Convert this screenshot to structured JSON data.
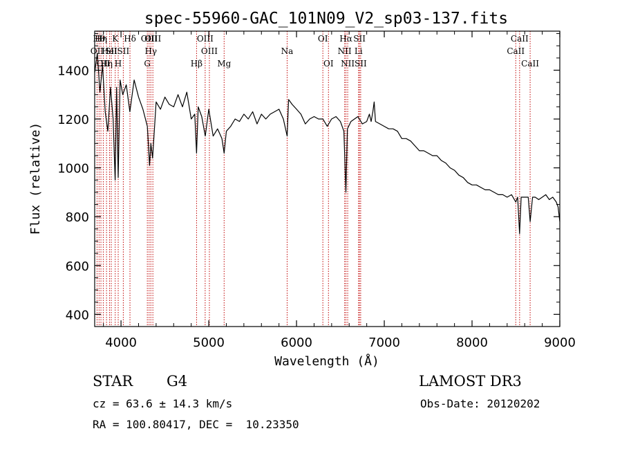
{
  "chart_data": {
    "type": "line",
    "title": "spec-55960-GAC_101N09_V2_sp03-137.fits",
    "xlabel": "Wavelength (Å)",
    "ylabel": "Flux (relative)",
    "xlim": [
      3700,
      9000
    ],
    "ylim": [
      350,
      1560
    ],
    "x_ticks": [
      4000,
      5000,
      6000,
      7000,
      8000,
      9000
    ],
    "y_ticks": [
      400,
      600,
      800,
      1000,
      1200,
      1400
    ],
    "grid": false,
    "legend": "none",
    "line_color": "#000000",
    "marker_color": "#c00000",
    "spectrum": {
      "x": [
        3700,
        3730,
        3760,
        3790,
        3820,
        3850,
        3880,
        3910,
        3933,
        3950,
        3968,
        3990,
        4020,
        4060,
        4101,
        4150,
        4200,
        4250,
        4300,
        4325,
        4340,
        4360,
        4400,
        4450,
        4500,
        4550,
        4600,
        4650,
        4700,
        4750,
        4800,
        4840,
        4861,
        4880,
        4920,
        4960,
        5000,
        5050,
        5100,
        5150,
        5175,
        5200,
        5250,
        5300,
        5350,
        5400,
        5450,
        5500,
        5550,
        5600,
        5650,
        5700,
        5750,
        5800,
        5850,
        5893,
        5910,
        5950,
        6000,
        6050,
        6100,
        6150,
        6200,
        6250,
        6300,
        6350,
        6400,
        6450,
        6500,
        6540,
        6563,
        6580,
        6620,
        6660,
        6700,
        6750,
        6800,
        6830,
        6850,
        6870,
        6885,
        6900,
        6950,
        7000,
        7050,
        7100,
        7150,
        7200,
        7250,
        7300,
        7350,
        7400,
        7450,
        7500,
        7550,
        7600,
        7650,
        7700,
        7750,
        7800,
        7850,
        7900,
        7950,
        8000,
        8050,
        8100,
        8150,
        8200,
        8250,
        8300,
        8350,
        8400,
        8450,
        8498,
        8520,
        8542,
        8560,
        8600,
        8640,
        8662,
        8690,
        8720,
        8760,
        8800,
        8840,
        8880,
        8920,
        8960,
        8980,
        9000
      ],
      "y": [
        1390,
        1470,
        1310,
        1420,
        1230,
        1150,
        1330,
        1200,
        950,
        1330,
        960,
        1360,
        1300,
        1340,
        1230,
        1360,
        1290,
        1240,
        1170,
        1010,
        1100,
        1040,
        1270,
        1240,
        1290,
        1260,
        1250,
        1300,
        1250,
        1310,
        1200,
        1220,
        1060,
        1250,
        1210,
        1130,
        1240,
        1130,
        1160,
        1120,
        1060,
        1150,
        1170,
        1200,
        1190,
        1220,
        1200,
        1230,
        1180,
        1220,
        1200,
        1220,
        1230,
        1240,
        1200,
        1130,
        1280,
        1260,
        1240,
        1220,
        1180,
        1200,
        1210,
        1200,
        1200,
        1170,
        1200,
        1210,
        1190,
        1150,
        900,
        1160,
        1190,
        1200,
        1210,
        1180,
        1190,
        1220,
        1190,
        1230,
        1270,
        1190,
        1180,
        1170,
        1160,
        1160,
        1150,
        1120,
        1120,
        1110,
        1090,
        1070,
        1070,
        1060,
        1050,
        1050,
        1030,
        1020,
        1000,
        990,
        970,
        960,
        940,
        930,
        930,
        920,
        910,
        910,
        900,
        890,
        890,
        880,
        890,
        860,
        880,
        730,
        880,
        880,
        880,
        780,
        880,
        880,
        870,
        880,
        890,
        870,
        880,
        860,
        840,
        780
      ]
    },
    "lines": [
      {
        "x": 3727,
        "label": "OII",
        "row": 2
      },
      {
        "x": 3750,
        "label": "Hθ",
        "row": 1
      },
      {
        "x": 3771,
        "label": "Hη",
        "row": 1
      },
      {
        "x": 3798,
        "label": "OII",
        "row": 3
      },
      {
        "x": 3835,
        "label": "Hη",
        "row": 3
      },
      {
        "x": 3869,
        "label": "HeI",
        "row": 2
      },
      {
        "x": 3889,
        "label": "SII",
        "row": 2
      },
      {
        "x": 3934,
        "label": "K",
        "row": 1
      },
      {
        "x": 3968,
        "label": "H",
        "row": 3
      },
      {
        "x": 4026,
        "label": "SII",
        "row": 2
      },
      {
        "x": 4102,
        "label": "Hδ",
        "row": 1
      },
      {
        "x": 4300,
        "label": "G",
        "row": 3
      },
      {
        "x": 4320,
        "label": "OIII",
        "row": 1
      },
      {
        "x": 4340,
        "label": "Hγ",
        "row": 2
      },
      {
        "x": 4363,
        "label": "OIII",
        "row": 1
      },
      {
        "x": 4861,
        "label": "Hβ",
        "row": 3
      },
      {
        "x": 4959,
        "label": "OIII",
        "row": 1
      },
      {
        "x": 5007,
        "label": "OIII",
        "row": 2
      },
      {
        "x": 5175,
        "label": "Mg",
        "row": 3
      },
      {
        "x": 5893,
        "label": "Na",
        "row": 2
      },
      {
        "x": 6300,
        "label": "OI",
        "row": 1
      },
      {
        "x": 6364,
        "label": "OI",
        "row": 3
      },
      {
        "x": 6548,
        "label": "NII",
        "row": 2
      },
      {
        "x": 6563,
        "label": "Hα",
        "row": 1
      },
      {
        "x": 6583,
        "label": "NII",
        "row": 3
      },
      {
        "x": 6707,
        "label": "Li",
        "row": 2
      },
      {
        "x": 6717,
        "label": "SII",
        "row": 1
      },
      {
        "x": 6731,
        "label": "SII",
        "row": 3
      },
      {
        "x": 8498,
        "label": "CaII",
        "row": 2
      },
      {
        "x": 8542,
        "label": "CaII",
        "row": 1
      },
      {
        "x": 8662,
        "label": "CaII",
        "row": 3
      }
    ]
  },
  "info": {
    "class": "STAR",
    "subclass": "G4",
    "survey": "LAMOST DR3",
    "cz": "cz = 63.6 ± 14.3 km/s",
    "obs_date": "Obs-Date: 20120202",
    "radec": "RA = 100.80417, DEC =  10.23350"
  }
}
